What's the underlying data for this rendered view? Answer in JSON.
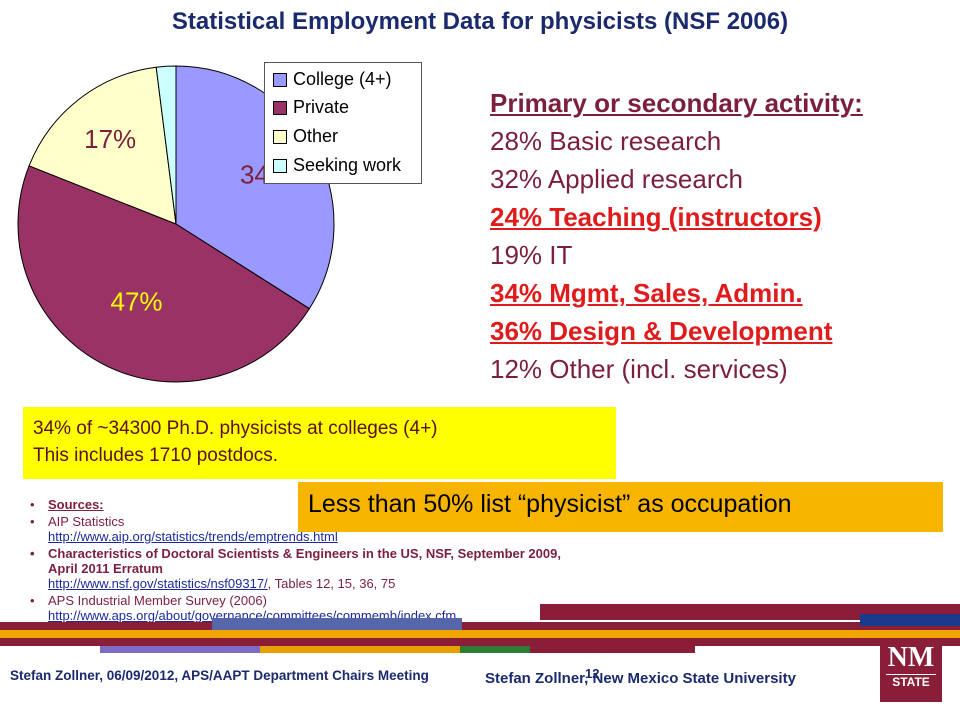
{
  "title": "Statistical Employment Data for physicists (NSF 2006)",
  "chart_data": {
    "type": "pie",
    "title": "",
    "slices": [
      {
        "name": "College (4+)",
        "value": 34,
        "color": "#9999ff",
        "label": "34%"
      },
      {
        "name": "Private",
        "value": 47,
        "color": "#993366",
        "label": "47%"
      },
      {
        "name": "Other",
        "value": 17,
        "color": "#ffffcc",
        "label": "17%"
      },
      {
        "name": "Seeking work",
        "value": 2,
        "color": "#ccffff",
        "label": ""
      }
    ],
    "legend_position": "top-right"
  },
  "legend": {
    "items": [
      "College (4+)",
      "Private",
      "Other",
      "Seeking work"
    ]
  },
  "activity": {
    "heading": "Primary or secondary activity:",
    "lines": [
      {
        "text": "28% Basic research",
        "highlight": false
      },
      {
        "text": "32% Applied research",
        "highlight": false
      },
      {
        "text": "24% Teaching (instructors)",
        "highlight": true
      },
      {
        "text": "19% IT",
        "highlight": false
      },
      {
        "text": "34% Mgmt, Sales, Admin.",
        "highlight": true
      },
      {
        "text": "36% Design & Development",
        "highlight": true
      },
      {
        "text": "12% Other (incl. services)",
        "highlight": false
      }
    ]
  },
  "yellow_box": {
    "line1": "34% of ~34300 Ph.D. physicists at colleges (4+)",
    "line2": "This includes 1710 postdocs."
  },
  "orange_box": "Less than 50% list “physicist” as occupation",
  "sources": {
    "heading": "Sources:",
    "items": [
      {
        "title": "AIP Statistics",
        "link": "http://www.aip.org/statistics/trends/emptrends.html",
        "suffix": ""
      },
      {
        "title": "Characteristics of Doctoral Scientists & Engineers in the US, NSF, September 2009, April 2011 Erratum",
        "link": "http://www.nsf.gov/statistics/nsf09317/",
        "suffix": ", Tables 12, 15, 36, 75"
      },
      {
        "title": "APS Industrial Member Survey (2006)",
        "link": "http://www.aps.org/about/governance/committees/commemb/index.cfm",
        "suffix": ""
      }
    ]
  },
  "footer": {
    "left": "Stefan Zollner, 06/09/2012, APS/AAPT Department Chairs Meeting",
    "page": "12",
    "right": "Stefan Zollner, New Mexico State University"
  },
  "logo": {
    "top": "NM",
    "bottom": "STATE"
  },
  "colors": {
    "navy": "#1a2a6c",
    "maroon": "#8a1e38",
    "gold": "#f0a500",
    "purple": "#9999ff"
  }
}
